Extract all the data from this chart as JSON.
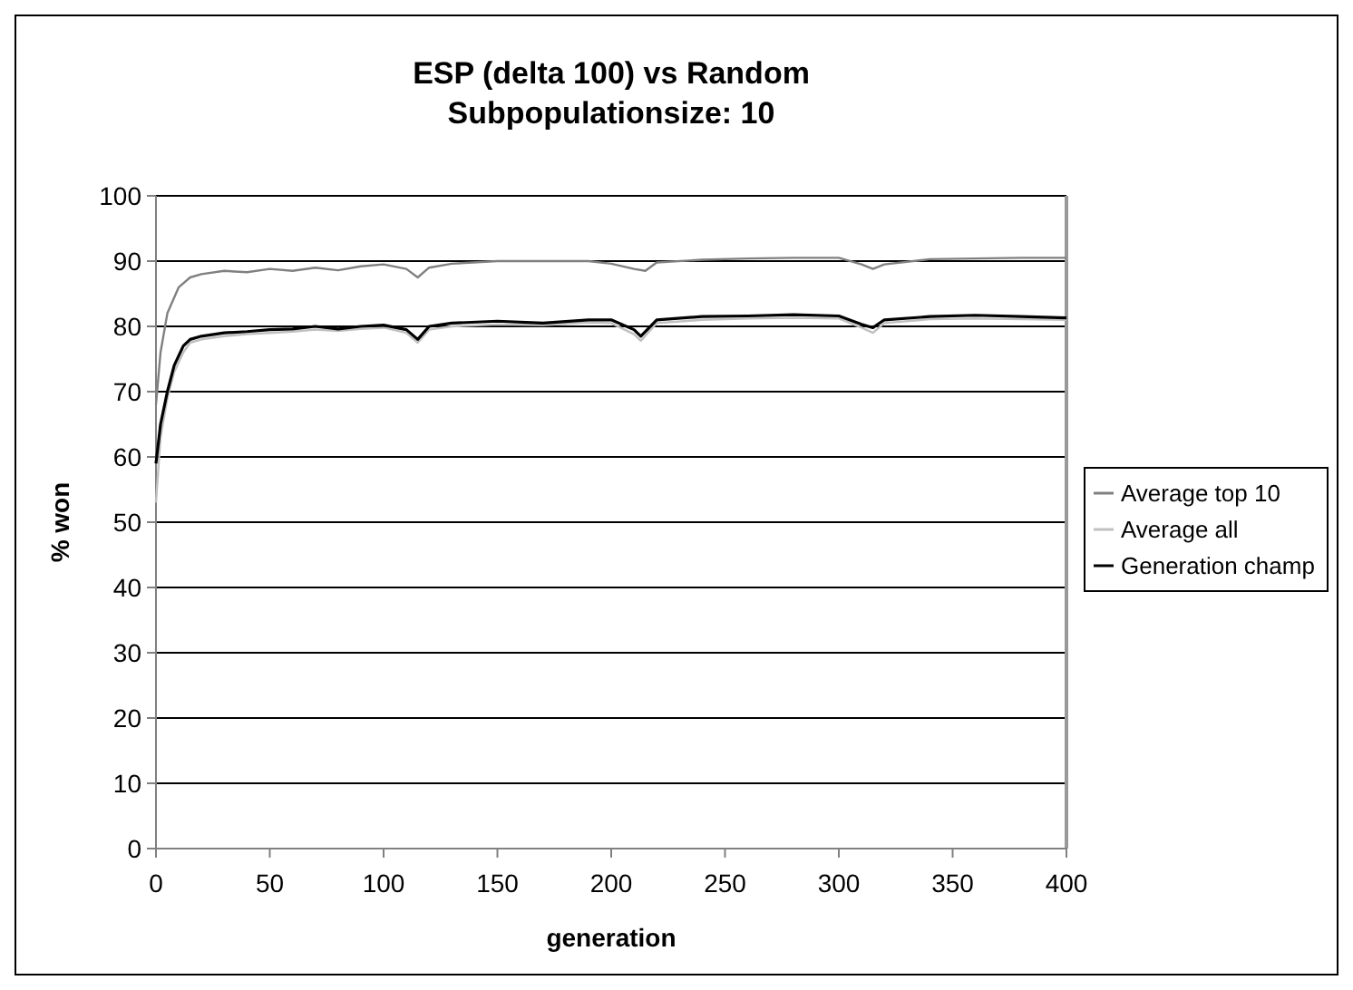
{
  "chart_data": {
    "type": "line",
    "title": "ESP (delta 100) vs Random",
    "subtitle": "Subpopulationsize: 10",
    "xlabel": "generation",
    "ylabel": "% won",
    "xlim": [
      0,
      400
    ],
    "xticks": [
      0,
      50,
      100,
      150,
      200,
      250,
      300,
      350,
      400
    ],
    "ylim": [
      0,
      100
    ],
    "yticks": [
      0,
      10,
      20,
      30,
      40,
      50,
      60,
      70,
      80,
      90,
      100
    ],
    "grid": "y",
    "legend": "right",
    "line_style": "solid",
    "series": [
      {
        "name": "Average top 10",
        "color": "#808080",
        "x": [
          0,
          2,
          5,
          10,
          15,
          20,
          30,
          40,
          50,
          60,
          70,
          80,
          90,
          100,
          110,
          115,
          120,
          130,
          150,
          170,
          190,
          200,
          210,
          215,
          220,
          240,
          260,
          280,
          300,
          310,
          315,
          320,
          340,
          360,
          380,
          400
        ],
        "values": [
          68,
          76,
          82,
          86,
          87.5,
          88,
          88.5,
          88.3,
          88.8,
          88.5,
          89,
          88.6,
          89.2,
          89.5,
          88.8,
          87.5,
          89,
          89.6,
          90,
          90,
          90,
          89.6,
          88.8,
          88.5,
          89.8,
          90.2,
          90.4,
          90.5,
          90.5,
          89.5,
          88.8,
          89.5,
          90.3,
          90.4,
          90.5,
          90.5
        ]
      },
      {
        "name": "Average all",
        "color": "#c0c0c0",
        "x": [
          0,
          2,
          5,
          8,
          12,
          15,
          20,
          30,
          40,
          50,
          60,
          70,
          80,
          90,
          100,
          110,
          115,
          120,
          130,
          150,
          170,
          190,
          200,
          210,
          213,
          220,
          240,
          260,
          280,
          300,
          310,
          315,
          320,
          340,
          360,
          380,
          400
        ],
        "values": [
          53,
          63,
          69,
          73,
          76,
          77.5,
          78,
          78.5,
          78.8,
          79,
          79.2,
          79.5,
          79.3,
          79.6,
          79.8,
          79,
          77.5,
          79.5,
          80,
          80.3,
          80.2,
          80.6,
          80.5,
          78.8,
          77.8,
          80.5,
          81,
          81.2,
          81.3,
          81.2,
          79.8,
          79,
          80.5,
          81.1,
          81.2,
          81.1,
          81
        ]
      },
      {
        "name": "Generation champ",
        "color": "#000000",
        "x": [
          0,
          2,
          5,
          8,
          12,
          15,
          20,
          30,
          40,
          50,
          60,
          70,
          80,
          90,
          100,
          110,
          115,
          120,
          130,
          150,
          170,
          190,
          200,
          210,
          213,
          220,
          240,
          260,
          280,
          300,
          310,
          315,
          320,
          340,
          360,
          380,
          400
        ],
        "values": [
          59,
          65,
          70,
          74,
          77,
          78,
          78.5,
          79,
          79.2,
          79.5,
          79.6,
          80,
          79.6,
          80,
          80.2,
          79.5,
          78,
          80,
          80.5,
          80.8,
          80.5,
          81,
          81,
          79.5,
          78.5,
          81,
          81.5,
          81.6,
          81.8,
          81.6,
          80.3,
          79.8,
          81,
          81.5,
          81.7,
          81.5,
          81.3
        ]
      }
    ]
  }
}
